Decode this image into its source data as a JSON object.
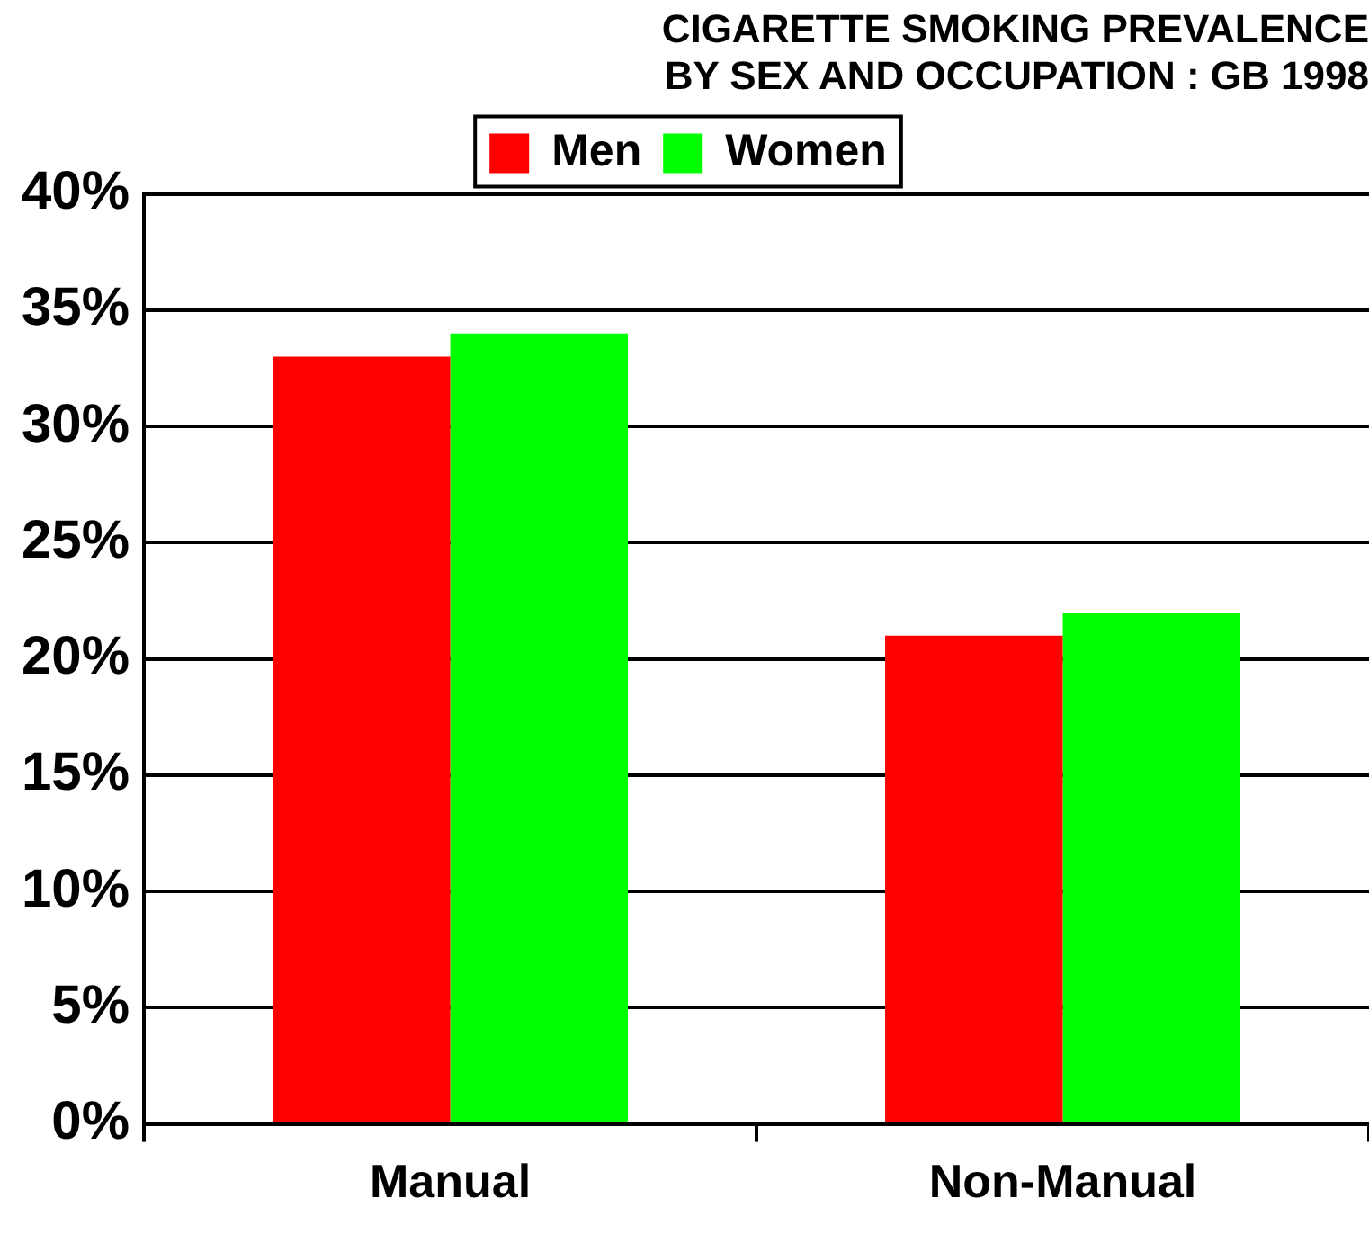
{
  "chart_data": {
    "type": "bar",
    "title": "CIGARETTE SMOKING PREVALENCE\nBY SEX AND OCCUPATION : GB 1998",
    "categories": [
      "Manual",
      "Non-Manual"
    ],
    "series": [
      {
        "name": "Men",
        "color": "#ff0000",
        "values": [
          33,
          21
        ]
      },
      {
        "name": "Women",
        "color": "#00ff00",
        "values": [
          34,
          22
        ]
      }
    ],
    "ylim": [
      0,
      40
    ],
    "yticks": [
      {
        "value": 0,
        "label": "0%"
      },
      {
        "value": 5,
        "label": "5%"
      },
      {
        "value": 10,
        "label": "10%"
      },
      {
        "value": 15,
        "label": "15%"
      },
      {
        "value": 20,
        "label": "20%"
      },
      {
        "value": 25,
        "label": "25%"
      },
      {
        "value": 30,
        "label": "30%"
      },
      {
        "value": 35,
        "label": "35%"
      },
      {
        "value": 40,
        "label": "40%"
      }
    ],
    "grid": "y",
    "legend": "top"
  }
}
